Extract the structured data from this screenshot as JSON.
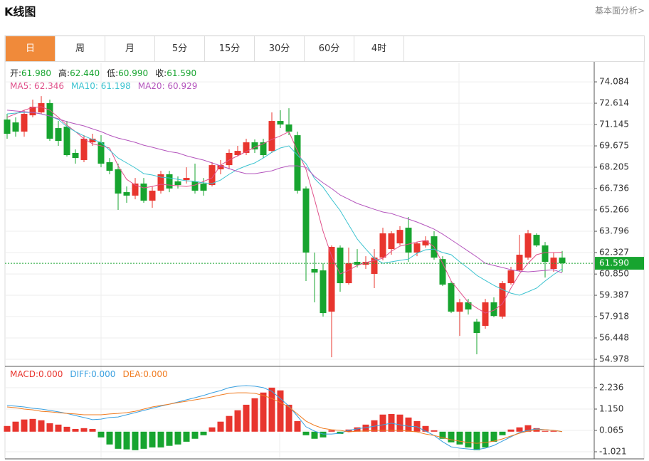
{
  "header": {
    "title": "K线图",
    "link": "基本面分析>"
  },
  "tabs": {
    "labels": [
      "日",
      "周",
      "月",
      "5分",
      "15分",
      "30分",
      "60分",
      "4时"
    ],
    "active": 0
  },
  "chart_data": [
    {
      "type": "candlestick",
      "info": [
        {
          "label": "开:",
          "value": "61.980"
        },
        {
          "label": "高:",
          "value": "62.440"
        },
        {
          "label": "低:",
          "value": "60.990"
        },
        {
          "label": "收:",
          "value": "61.590"
        }
      ],
      "info_value_color": "#17a42f",
      "up_color": "#e8352e",
      "down_color": "#17a42f",
      "open": [
        71.49,
        71.29,
        70.66,
        71.78,
        71.98,
        72.62,
        70.9,
        71.0,
        69.19,
        68.7,
        69.92,
        69.92,
        68.55,
        68.06,
        66.49,
        66.25,
        67.08,
        65.9,
        66.59,
        67.72,
        67.23,
        67.32,
        67.23,
        67.08,
        66.98,
        68.06,
        68.35,
        69.04,
        69.19,
        69.92,
        69.92,
        69.33,
        71.39,
        71.15,
        70.41,
        66.74,
        61.2,
        61.1,
        58.26,
        62.67,
        60.22,
        61.69,
        61.49,
        60.86,
        61.98,
        62.57,
        62.96,
        64.04,
        62.33,
        62.82,
        63.45,
        61.88,
        60.22,
        58.26,
        58.9,
        57.57,
        57.28,
        58.9,
        57.92,
        60.22,
        61.1,
        61.98,
        63.55,
        62.82,
        61.2,
        61.98
      ],
      "high": [
        71.88,
        71.64,
        72.13,
        72.86,
        73.1,
        72.86,
        71.39,
        71.39,
        69.43,
        70.41,
        70.51,
        70.41,
        68.84,
        68.45,
        66.88,
        67.47,
        67.47,
        66.88,
        67.96,
        67.96,
        67.57,
        68.2,
        68.45,
        67.47,
        68.55,
        68.7,
        69.43,
        69.68,
        70.17,
        70.12,
        70.17,
        71.98,
        72.13,
        72.27,
        70.66,
        66.88,
        62.33,
        61.59,
        62.82,
        62.82,
        62.67,
        62.57,
        62.08,
        62.57,
        64.04,
        63.8,
        64.14,
        64.78,
        63.06,
        63.45,
        63.8,
        62.08,
        60.37,
        59.14,
        59.14,
        57.77,
        59.14,
        59.24,
        60.37,
        61.35,
        63.55,
        63.89,
        63.65,
        63.06,
        62.33,
        62.44
      ],
      "low": [
        70.17,
        70.31,
        70.31,
        71.64,
        71.88,
        70.02,
        69.68,
        68.94,
        68.45,
        68.55,
        69.68,
        68.2,
        67.72,
        65.27,
        65.76,
        66.0,
        65.76,
        65.41,
        66.39,
        66.49,
        66.74,
        67.08,
        66.39,
        66.25,
        66.88,
        67.72,
        68.06,
        68.94,
        69.04,
        69.19,
        68.84,
        69.19,
        70.9,
        70.41,
        66.39,
        60.37,
        58.9,
        57.92,
        55.12,
        59.63,
        60.12,
        61.3,
        61.2,
        59.88,
        61.79,
        62.18,
        62.82,
        61.69,
        62.08,
        62.67,
        61.83,
        60.02,
        58.16,
        56.59,
        58.06,
        55.32,
        57.08,
        57.87,
        57.77,
        60.12,
        61.0,
        61.83,
        62.72,
        60.61,
        61.0,
        60.99
      ],
      "close": [
        70.51,
        70.66,
        71.88,
        72.37,
        72.62,
        70.17,
        70.02,
        69.04,
        68.84,
        70.17,
        70.17,
        68.45,
        67.96,
        66.39,
        66.25,
        67.08,
        65.9,
        66.59,
        67.72,
        66.74,
        66.98,
        67.47,
        66.59,
        66.59,
        68.35,
        68.35,
        69.19,
        69.33,
        69.92,
        69.43,
        69.04,
        71.39,
        71.15,
        70.66,
        66.59,
        62.33,
        60.95,
        58.16,
        62.72,
        60.22,
        61.59,
        61.49,
        61.69,
        61.98,
        63.65,
        63.65,
        63.89,
        62.33,
        62.96,
        63.16,
        61.98,
        60.12,
        58.26,
        58.9,
        58.41,
        56.79,
        58.9,
        57.96,
        60.22,
        61.1,
        62.18,
        63.65,
        62.82,
        61.69,
        61.98,
        61.59
      ],
      "series": [
        {
          "name": "MA5: 62.346",
          "color": "#e0508a",
          "values": [
            71.64,
            71.88,
            72.13,
            72.32,
            72.37,
            72.13,
            71.64,
            71.1,
            70.66,
            70.17,
            69.82,
            69.68,
            69.53,
            68.3,
            67.37,
            66.98,
            66.78,
            66.88,
            67.03,
            66.98,
            66.93,
            66.88,
            66.98,
            67.23,
            67.47,
            68.35,
            68.7,
            68.99,
            69.28,
            69.58,
            69.82,
            70.12,
            70.36,
            70.66,
            69.33,
            68.06,
            66.0,
            63.8,
            62.08,
            60.86,
            61.1,
            61.44,
            61.64,
            61.79,
            61.93,
            62.42,
            62.77,
            62.91,
            63.06,
            63.16,
            62.72,
            61.59,
            60.37,
            59.63,
            58.9,
            58.51,
            58.16,
            58.35,
            58.8,
            59.88,
            60.86,
            61.59,
            62.18,
            62.33,
            62.33,
            62.35
          ]
        },
        {
          "name": "MA10: 61.198",
          "color": "#3cc3d0",
          "values": [
            71.88,
            71.93,
            71.98,
            71.98,
            71.88,
            71.73,
            71.49,
            71.0,
            70.66,
            70.36,
            70.12,
            69.92,
            69.38,
            68.84,
            68.5,
            68.16,
            67.76,
            67.67,
            67.52,
            67.47,
            67.37,
            67.27,
            67.23,
            67.13,
            67.08,
            67.32,
            67.72,
            68.06,
            68.3,
            68.5,
            68.84,
            69.23,
            69.53,
            69.68,
            69.04,
            68.45,
            67.42,
            66.83,
            66.0,
            65.22,
            64.24,
            63.26,
            62.57,
            61.93,
            61.59,
            61.69,
            61.79,
            61.88,
            62.28,
            62.52,
            62.57,
            62.33,
            62.18,
            61.69,
            61.25,
            60.76,
            60.41,
            60.07,
            59.78,
            59.53,
            59.39,
            59.63,
            59.88,
            60.37,
            60.81,
            61.2
          ]
        },
        {
          "name": "MA20: 60.929",
          "color": "#b455bd",
          "values": [
            72.13,
            72.08,
            72.03,
            71.98,
            71.88,
            71.73,
            71.54,
            71.34,
            71.19,
            71.05,
            70.85,
            70.66,
            70.41,
            70.21,
            70.07,
            69.92,
            69.72,
            69.58,
            69.43,
            69.28,
            69.19,
            68.99,
            68.84,
            68.7,
            68.5,
            68.3,
            68.11,
            67.91,
            67.76,
            67.76,
            67.86,
            67.96,
            68.16,
            68.3,
            68.3,
            68.2,
            67.57,
            67.13,
            66.74,
            66.29,
            66.0,
            65.71,
            65.51,
            65.31,
            65.12,
            65.02,
            64.82,
            64.63,
            64.43,
            64.19,
            63.94,
            63.6,
            63.21,
            62.82,
            62.42,
            62.03,
            61.59,
            61.44,
            61.3,
            61.15,
            61.05,
            61.0,
            61.05,
            61.1,
            61.15,
            60.93
          ]
        }
      ],
      "last_price": {
        "value": 61.59,
        "label": "61.590",
        "color": "#17a42f"
      },
      "ylim": [
        54.49,
        75.41
      ],
      "yticks": [
        74.084,
        72.614,
        71.145,
        69.675,
        68.205,
        66.736,
        65.266,
        63.796,
        62.327,
        {
          "value": 60.85,
          "label": "60.850"
        },
        59.387,
        57.918,
        56.448,
        54.978
      ],
      "grid": true
    },
    {
      "type": "bar",
      "label": "MACD:0.000",
      "positive_color": "#e8352e",
      "negative_color": "#17a42f",
      "values": [
        0.29,
        0.51,
        0.62,
        0.65,
        0.58,
        0.43,
        0.36,
        0.25,
        0.14,
        0.18,
        0.14,
        -0.29,
        -0.65,
        -0.87,
        -0.9,
        -0.94,
        -0.87,
        -0.8,
        -0.8,
        -0.72,
        -0.65,
        -0.51,
        -0.36,
        -0.18,
        0.22,
        0.51,
        0.8,
        1.09,
        1.37,
        1.7,
        1.99,
        2.24,
        2.1,
        1.37,
        0.54,
        -0.18,
        -0.36,
        -0.29,
        0.07,
        -0.11,
        0.11,
        0.22,
        0.36,
        0.58,
        0.87,
        0.9,
        0.87,
        0.72,
        0.54,
        0.29,
        0.07,
        -0.36,
        -0.54,
        -0.65,
        -0.8,
        -0.94,
        -0.8,
        -0.51,
        -0.18,
        0.11,
        0.22,
        0.33,
        0.18,
        0.04,
        0.04,
        0
      ],
      "series": [
        {
          "name": "DIFF:0.000",
          "color": "#3aa0e0",
          "values": [
            1.33,
            1.3,
            1.26,
            1.19,
            1.15,
            1.08,
            1.01,
            0.93,
            0.82,
            0.72,
            0.61,
            0.64,
            0.72,
            0.75,
            0.86,
            0.97,
            1.08,
            1.19,
            1.3,
            1.4,
            1.51,
            1.62,
            1.73,
            1.84,
            1.98,
            2.09,
            2.24,
            2.31,
            2.34,
            2.31,
            2.24,
            2.05,
            1.69,
            1.3,
            0.79,
            0.25,
            0.03,
            -0.12,
            -0.12,
            -0.08,
            0.07,
            0.14,
            0.21,
            0.28,
            0.35,
            0.43,
            0.35,
            0.28,
            0.25,
            0.03,
            -0.19,
            -0.51,
            -0.77,
            -0.84,
            -0.88,
            -0.91,
            -0.84,
            -0.7,
            -0.48,
            -0.26,
            -0.04,
            0.07,
            0.14,
            0.1,
            0.07,
            0
          ]
        },
        {
          "name": "DEA:0.000",
          "color": "#f07c22",
          "values": [
            1.26,
            1.22,
            1.15,
            1.11,
            1.04,
            1.01,
            0.97,
            0.93,
            0.9,
            0.86,
            0.86,
            0.86,
            0.9,
            0.93,
            0.97,
            1.04,
            1.15,
            1.26,
            1.33,
            1.4,
            1.48,
            1.55,
            1.62,
            1.69,
            1.77,
            1.87,
            1.95,
            1.98,
            1.98,
            1.95,
            1.84,
            1.69,
            1.48,
            1.26,
            0.9,
            0.54,
            0.32,
            0.17,
            0.1,
            0.07,
            -0.01,
            0.03,
            0.03,
            0.07,
            0.07,
            0.07,
            0.07,
            0.03,
            -0.01,
            -0.12,
            -0.19,
            -0.3,
            -0.41,
            -0.48,
            -0.55,
            -0.59,
            -0.55,
            -0.48,
            -0.37,
            -0.22,
            -0.08,
            0.03,
            0.1,
            0.1,
            0.07,
            0
          ]
        }
      ],
      "ylim": [
        -1.382,
        3.321
      ],
      "yticks": [
        2.236,
        {
          "value": 1.15,
          "label": "1.150"
        },
        0.065,
        -1.021
      ],
      "grid": true
    }
  ]
}
